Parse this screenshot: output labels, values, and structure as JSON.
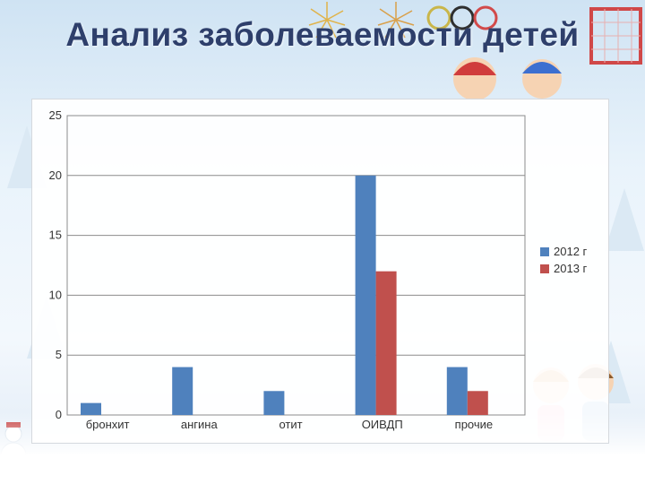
{
  "slide": {
    "title": "Анализ заболеваемости детей"
  },
  "chart_data": {
    "type": "bar",
    "title": "",
    "xlabel": "",
    "ylabel": "",
    "categories": [
      "бронхит",
      "ангина",
      "отит",
      "ОИВДП",
      "прочие"
    ],
    "series": [
      {
        "name": "2012 г",
        "color": "#4f81bd",
        "values": [
          1,
          4,
          2,
          20,
          4
        ]
      },
      {
        "name": "2013 г",
        "color": "#c0504d",
        "values": [
          0,
          0,
          0,
          12,
          2
        ]
      }
    ],
    "ylim": [
      0,
      25
    ],
    "yticks": [
      0,
      5,
      10,
      15,
      20,
      25
    ],
    "grid": true,
    "legend_position": "right"
  }
}
